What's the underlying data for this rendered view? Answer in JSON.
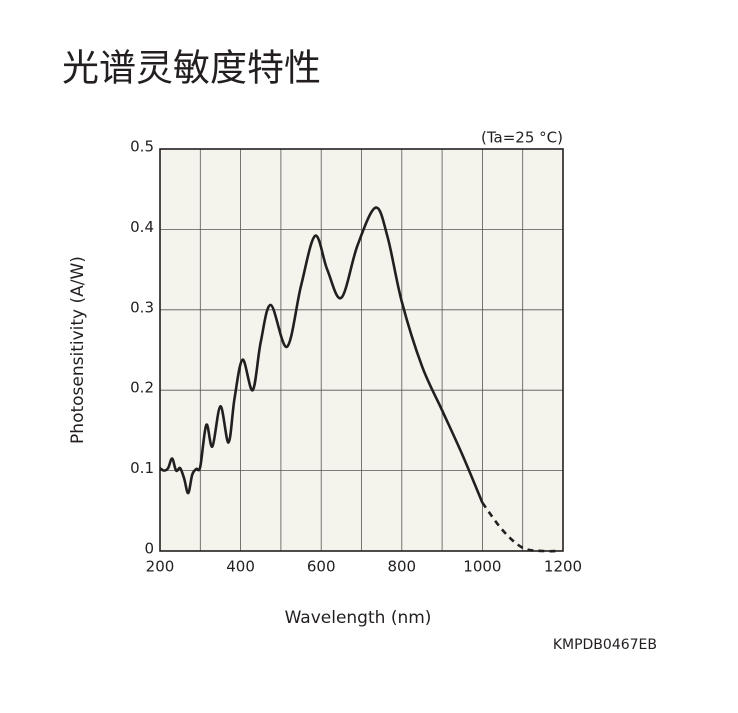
{
  "chart_data": {
    "type": "line",
    "title": "光谱灵敏度特性",
    "annotation": "(Ta=25 °C)",
    "xlabel": "Wavelength (nm)",
    "ylabel": "Photosensitivity (A/W)",
    "code": "KMPDB0467EB",
    "xlim": [
      200,
      1200
    ],
    "ylim": [
      0,
      0.5
    ],
    "xticks": [
      200,
      400,
      600,
      800,
      1000,
      1200
    ],
    "xminor": [
      300,
      500,
      700,
      900,
      1100
    ],
    "yticks": [
      0,
      0.1,
      0.2,
      0.3,
      0.4,
      0.5
    ],
    "grid": true,
    "background": "#f4f3ec",
    "series": [
      {
        "color": "#231f20",
        "dash": false,
        "x": [
          200,
          210,
          220,
          230,
          240,
          250,
          260,
          270,
          280,
          290,
          300,
          315,
          330,
          350,
          370,
          385,
          405,
          430,
          450,
          475,
          515,
          550,
          585,
          615,
          650,
          690,
          735,
          765,
          800,
          850,
          900,
          950,
          1000
        ],
        "values": [
          0.103,
          0.1,
          0.103,
          0.115,
          0.1,
          0.103,
          0.09,
          0.072,
          0.095,
          0.102,
          0.105,
          0.157,
          0.13,
          0.18,
          0.135,
          0.19,
          0.238,
          0.2,
          0.26,
          0.306,
          0.254,
          0.33,
          0.392,
          0.35,
          0.315,
          0.38,
          0.427,
          0.39,
          0.31,
          0.23,
          0.175,
          0.12,
          0.06
        ]
      },
      {
        "color": "#231f20",
        "dash": true,
        "x": [
          1000,
          1050,
          1100,
          1150,
          1190
        ],
        "values": [
          0.06,
          0.026,
          0.004,
          0,
          0
        ]
      }
    ]
  }
}
